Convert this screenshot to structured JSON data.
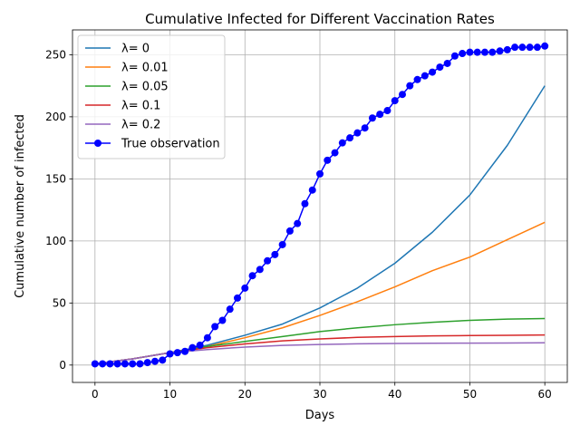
{
  "chart_data": {
    "type": "line",
    "title": "Cumulative Infected for Different Vaccination Rates",
    "xlabel": "Days",
    "ylabel": "Cumulative number of infected",
    "xlim": [
      -3,
      63
    ],
    "ylim": [
      -14,
      270
    ],
    "x_ticks": [
      0,
      10,
      20,
      30,
      40,
      50,
      60
    ],
    "y_ticks": [
      0,
      50,
      100,
      150,
      200,
      250
    ],
    "grid": true,
    "legend_position": "upper left",
    "series": [
      {
        "name": "λ= 0",
        "color": "#1f77b4",
        "marker": "none",
        "x": [
          0,
          5,
          10,
          15,
          20,
          25,
          30,
          35,
          40,
          45,
          50,
          55,
          60
        ],
        "y": [
          1,
          5,
          10,
          16,
          24,
          33,
          46,
          62,
          82,
          107,
          137,
          177,
          225
        ]
      },
      {
        "name": "λ= 0.01",
        "color": "#ff7f0e",
        "marker": "none",
        "x": [
          0,
          5,
          10,
          15,
          20,
          25,
          30,
          35,
          40,
          45,
          50,
          55,
          60
        ],
        "y": [
          1,
          5,
          10,
          15,
          22,
          30,
          40,
          51,
          63,
          76,
          87,
          101,
          115
        ]
      },
      {
        "name": "λ= 0.05",
        "color": "#2ca02c",
        "marker": "none",
        "x": [
          0,
          5,
          10,
          15,
          20,
          25,
          30,
          35,
          40,
          45,
          50,
          55,
          60
        ],
        "y": [
          1,
          5,
          10,
          15,
          19,
          23,
          27,
          30,
          32.5,
          34.5,
          36,
          37,
          37.5
        ]
      },
      {
        "name": "λ= 0.1",
        "color": "#d62728",
        "marker": "none",
        "x": [
          0,
          5,
          10,
          15,
          20,
          25,
          30,
          35,
          40,
          45,
          50,
          55,
          60
        ],
        "y": [
          1,
          5,
          10,
          14,
          17,
          19.5,
          21,
          22.3,
          23,
          23.5,
          23.8,
          24,
          24.2
        ]
      },
      {
        "name": "λ= 0.2",
        "color": "#9467bd",
        "marker": "none",
        "x": [
          0,
          5,
          10,
          15,
          20,
          25,
          30,
          35,
          40,
          45,
          50,
          55,
          60
        ],
        "y": [
          1,
          5,
          10,
          12.5,
          14.5,
          15.8,
          16.6,
          17.1,
          17.4,
          17.6,
          17.7,
          17.8,
          17.9
        ]
      },
      {
        "name": "True observation",
        "color": "#0000ff",
        "marker": "circle",
        "x": [
          0,
          1,
          2,
          3,
          4,
          5,
          6,
          7,
          8,
          9,
          10,
          11,
          12,
          13,
          14,
          15,
          16,
          17,
          18,
          19,
          20,
          21,
          22,
          23,
          24,
          25,
          26,
          27,
          28,
          29,
          30,
          31,
          32,
          33,
          34,
          35,
          36,
          37,
          38,
          39,
          40,
          41,
          42,
          43,
          44,
          45,
          46,
          47,
          48,
          49,
          50,
          51,
          52,
          53,
          54,
          55,
          56,
          57,
          58,
          59,
          60
        ],
        "y": [
          1,
          1,
          1,
          1,
          1,
          1,
          1,
          2,
          3,
          4,
          9,
          10,
          11,
          14,
          16,
          22,
          31,
          36,
          45,
          54,
          62,
          72,
          77,
          84,
          89,
          97,
          108,
          114,
          130,
          141,
          154,
          165,
          171,
          179,
          183,
          187,
          191,
          199,
          202,
          205,
          213,
          218,
          225,
          230,
          233,
          236,
          240,
          243,
          249,
          251,
          252,
          252,
          252,
          252,
          253,
          254,
          256,
          256,
          256,
          256,
          257
        ]
      }
    ]
  }
}
